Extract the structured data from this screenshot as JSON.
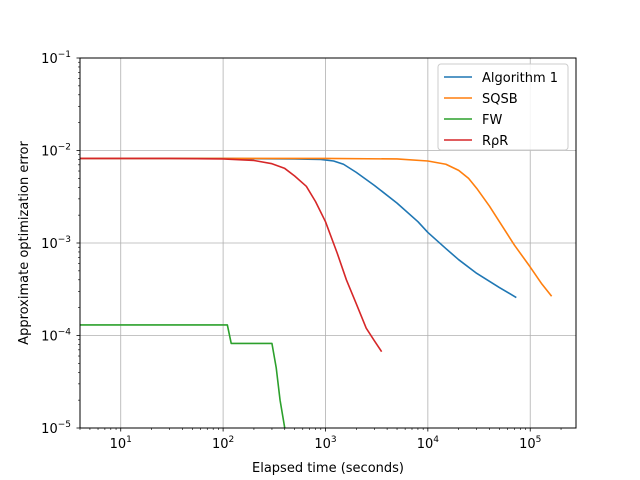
{
  "chart_data": {
    "type": "line",
    "title": "",
    "xlabel": "Elapsed time (seconds)",
    "ylabel": "Approximate optimization error",
    "xscale": "log",
    "yscale": "log",
    "xlim": [
      4,
      280000
    ],
    "ylim": [
      1e-05,
      0.1
    ],
    "grid": true,
    "legend_position": "upper right",
    "x_ticks": [
      {
        "value": 10,
        "base": "10",
        "exp": "1"
      },
      {
        "value": 100,
        "base": "10",
        "exp": "2"
      },
      {
        "value": 1000,
        "base": "10",
        "exp": "3"
      },
      {
        "value": 10000,
        "base": "10",
        "exp": "4"
      },
      {
        "value": 100000,
        "base": "10",
        "exp": "5"
      }
    ],
    "y_ticks": [
      {
        "value": 1e-05,
        "base": "10",
        "exp": "−5"
      },
      {
        "value": 0.0001,
        "base": "10",
        "exp": "−4"
      },
      {
        "value": 0.001,
        "base": "10",
        "exp": "−3"
      },
      {
        "value": 0.01,
        "base": "10",
        "exp": "−2"
      },
      {
        "value": 0.1,
        "base": "10",
        "exp": "−1"
      }
    ],
    "series": [
      {
        "name": "Algorithm 1",
        "color": "#1f77b4",
        "points": [
          [
            4,
            0.0082
          ],
          [
            100,
            0.0082
          ],
          [
            500,
            0.0081
          ],
          [
            900,
            0.008
          ],
          [
            1200,
            0.0077
          ],
          [
            1500,
            0.0071
          ],
          [
            2000,
            0.0058
          ],
          [
            3000,
            0.0042
          ],
          [
            5000,
            0.0027
          ],
          [
            8000,
            0.0017
          ],
          [
            10000,
            0.0013
          ],
          [
            15000,
            0.00087
          ],
          [
            20000,
            0.00066
          ],
          [
            30000,
            0.00047
          ],
          [
            50000,
            0.00033
          ],
          [
            72000,
            0.00026
          ]
        ]
      },
      {
        "name": "SQSB",
        "color": "#ff7f0e",
        "points": [
          [
            4,
            0.0082
          ],
          [
            1000,
            0.0082
          ],
          [
            5000,
            0.0081
          ],
          [
            10000,
            0.0077
          ],
          [
            15000,
            0.0071
          ],
          [
            20000,
            0.0061
          ],
          [
            25000,
            0.005
          ],
          [
            30000,
            0.0039
          ],
          [
            40000,
            0.0025
          ],
          [
            50000,
            0.0017
          ],
          [
            70000,
            0.00095
          ],
          [
            100000,
            0.00055
          ],
          [
            130000,
            0.00036
          ],
          [
            160000,
            0.00027
          ]
        ]
      },
      {
        "name": "FW",
        "color": "#2ca02c",
        "points": [
          [
            4,
            0.00013
          ],
          [
            110,
            0.00013
          ],
          [
            120,
            8.2e-05
          ],
          [
            300,
            8.2e-05
          ],
          [
            330,
            4.5e-05
          ],
          [
            360,
            2e-05
          ],
          [
            400,
            1e-05
          ]
        ]
      },
      {
        "name": "RρR",
        "color": "#d62728",
        "points": [
          [
            4,
            0.0082
          ],
          [
            30,
            0.0082
          ],
          [
            100,
            0.0081
          ],
          [
            200,
            0.0078
          ],
          [
            300,
            0.0072
          ],
          [
            400,
            0.0064
          ],
          [
            500,
            0.0053
          ],
          [
            650,
            0.0041
          ],
          [
            800,
            0.0028
          ],
          [
            1000,
            0.0017
          ],
          [
            1300,
            0.00078
          ],
          [
            1600,
            0.0004
          ],
          [
            2000,
            0.00022
          ],
          [
            2500,
            0.00012
          ],
          [
            3000,
            8.8e-05
          ],
          [
            3500,
            6.8e-05
          ]
        ]
      }
    ]
  }
}
